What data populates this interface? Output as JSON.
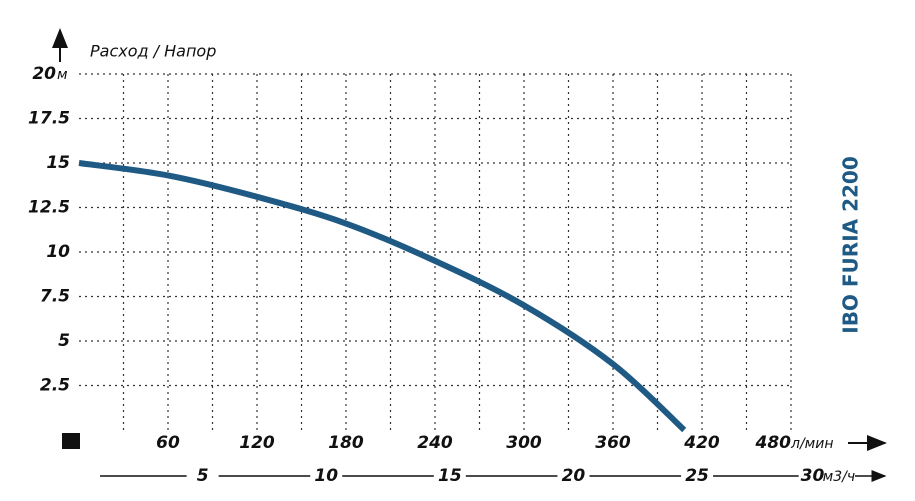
{
  "chart_data": {
    "type": "line",
    "title": "IBO FURIA 2200",
    "y_label": "Расход / Напор",
    "y_unit": "м",
    "x_unit": "л/мин",
    "x2_unit": "м3/ч",
    "x": [
      0,
      60,
      120,
      180,
      240,
      300,
      360,
      408
    ],
    "series": [
      {
        "name": "IBO FURIA 2200",
        "color": "#1f5a85",
        "values": [
          15,
          14.3,
          13.1,
          11.6,
          9.5,
          7,
          3.7,
          0
        ]
      }
    ],
    "xlim": [
      0,
      480
    ],
    "xticks": [
      60,
      120,
      180,
      240,
      300,
      360,
      420,
      480
    ],
    "x2lim": [
      0,
      28.8
    ],
    "x2ticks": [
      5,
      10,
      15,
      20,
      25,
      30
    ],
    "ylim": [
      0,
      20
    ],
    "yticks": [
      2.5,
      5,
      7.5,
      10,
      12.5,
      15,
      17.5,
      20
    ],
    "grid": true
  }
}
